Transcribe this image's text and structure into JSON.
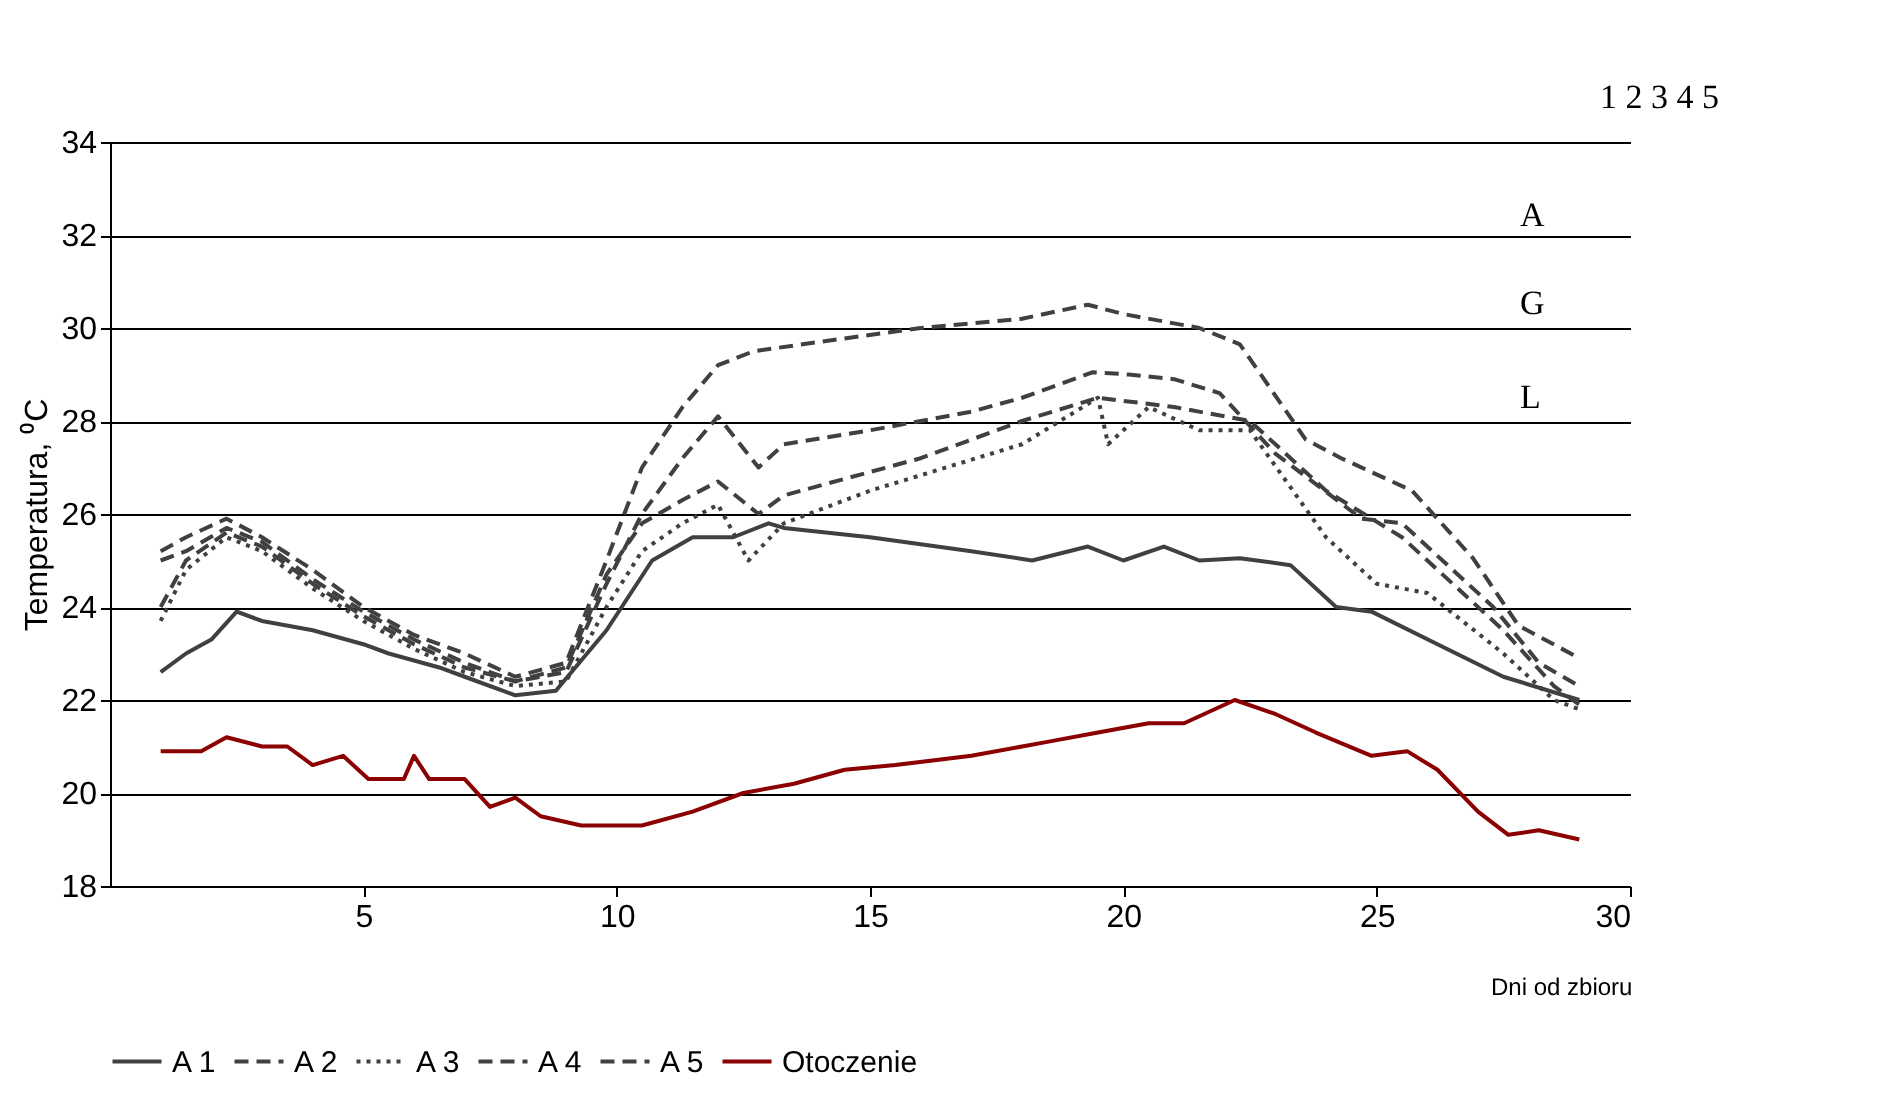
{
  "chart_data": {
    "type": "line",
    "xlabel": "Dni od zbioru",
    "ylabel": "Temperatura, ⁰C",
    "xlim": [
      0,
      30
    ],
    "xticks": [
      5,
      10,
      15,
      20,
      25,
      30
    ],
    "ylim": [
      18,
      34
    ],
    "yticks": [
      18,
      20,
      22,
      24,
      26,
      28,
      30,
      32,
      34
    ],
    "grid": "y",
    "legend": "bottom",
    "annotations": [
      "1 2 3 4 5",
      "A",
      "G",
      "L"
    ],
    "series": [
      {
        "name": "A 1",
        "color": "#404040",
        "line_style": "solid",
        "x": [
          1,
          1.5,
          2,
          2.5,
          3,
          4,
          5,
          5.5,
          6.5,
          7,
          8,
          8.8,
          9.8,
          10.7,
          11.5,
          12.3,
          13,
          13.3,
          15,
          17,
          18.2,
          19.3,
          20,
          20.8,
          21.5,
          22.3,
          23.3,
          24.2,
          24.9,
          26.2,
          27.5,
          29
        ],
        "values": [
          22.6,
          23.0,
          23.3,
          23.9,
          23.7,
          23.5,
          23.2,
          23.0,
          22.7,
          22.5,
          22.1,
          22.2,
          23.5,
          25.0,
          25.5,
          25.5,
          25.8,
          25.7,
          25.5,
          25.2,
          25.0,
          25.3,
          25.0,
          25.3,
          25.0,
          25.05,
          24.9,
          24.0,
          23.9,
          23.2,
          22.5,
          22.0
        ]
      },
      {
        "name": "A 2",
        "color": "#404040",
        "line_style": "dashed",
        "x": [
          1,
          1.5,
          2.3,
          3,
          4,
          5,
          6,
          7,
          8,
          9,
          9.8,
          10.5,
          11.3,
          12,
          12.8,
          13.3,
          15,
          17,
          18,
          19.4,
          20.1,
          21,
          21.9,
          23,
          24.7,
          25.5,
          26.3,
          27.3,
          28.2,
          29
        ],
        "values": [
          24.0,
          25.0,
          25.6,
          25.3,
          24.5,
          23.8,
          23.2,
          22.7,
          22.4,
          22.6,
          24.5,
          26.0,
          27.2,
          28.1,
          27.0,
          27.5,
          27.8,
          28.2,
          28.5,
          29.05,
          29.0,
          28.9,
          28.6,
          27.3,
          25.9,
          25.8,
          25.0,
          24.0,
          22.8,
          22.3
        ]
      },
      {
        "name": "A 3",
        "color": "#404040",
        "line_style": "dotted",
        "x": [
          1,
          1.5,
          2.3,
          3,
          4,
          5,
          6,
          7,
          8,
          9,
          9.8,
          10.5,
          11.3,
          12,
          12.6,
          13.3,
          15,
          18,
          19.5,
          19.7,
          20.5,
          21.5,
          22.5,
          24,
          25,
          26,
          27.5,
          28.5,
          29
        ],
        "values": [
          23.7,
          24.8,
          25.5,
          25.2,
          24.4,
          23.7,
          23.1,
          22.6,
          22.3,
          22.4,
          24.0,
          25.2,
          25.8,
          26.2,
          25.0,
          25.8,
          26.5,
          27.5,
          28.5,
          27.5,
          28.3,
          27.8,
          27.8,
          25.5,
          24.5,
          24.3,
          23.0,
          22.0,
          21.8
        ]
      },
      {
        "name": "A 4",
        "color": "#404040",
        "line_style": "dashed",
        "x": [
          1,
          1.5,
          2.3,
          3,
          4,
          5,
          6,
          7,
          8,
          9,
          9.8,
          10.5,
          11.3,
          12,
          12.7,
          14,
          16,
          18,
          19.3,
          20,
          21.5,
          22.3,
          23.6,
          24.3,
          25.7,
          26.9,
          27.8,
          29
        ],
        "values": [
          25.2,
          25.5,
          25.9,
          25.5,
          24.8,
          24.0,
          23.4,
          23.0,
          22.5,
          22.8,
          25.0,
          27.0,
          28.3,
          29.2,
          29.5,
          29.7,
          30.0,
          30.2,
          30.5,
          30.3,
          30.0,
          29.65,
          27.6,
          27.2,
          26.5,
          25.05,
          23.6,
          22.9
        ]
      },
      {
        "name": "A 5",
        "color": "#404040",
        "line_style": "dashed",
        "x": [
          1,
          1.5,
          2.3,
          3,
          4,
          5,
          6,
          7,
          8,
          9,
          9.8,
          10.5,
          11.3,
          12,
          12.8,
          13.3,
          16,
          18,
          19.5,
          21,
          22.5,
          24,
          25.5,
          26.5,
          27.5,
          28.5,
          29
        ],
        "values": [
          25.0,
          25.2,
          25.7,
          25.4,
          24.6,
          23.9,
          23.3,
          22.8,
          22.4,
          22.7,
          24.7,
          25.8,
          26.3,
          26.7,
          26.0,
          26.4,
          27.2,
          28.0,
          28.5,
          28.3,
          28.0,
          26.5,
          25.5,
          24.5,
          23.5,
          22.3,
          21.9
        ]
      },
      {
        "name": "Otoczenie",
        "color": "#8b0000",
        "line_style": "solid",
        "x": [
          1,
          1.8,
          2.3,
          3,
          3.5,
          4,
          4.6,
          5.1,
          5.8,
          6,
          6.3,
          7,
          7.5,
          8,
          8.5,
          9.3,
          10.5,
          11.5,
          12.5,
          13.5,
          14.5,
          15.5,
          17,
          18.5,
          19.5,
          20.5,
          21.2,
          22.2,
          23,
          23.8,
          24.9,
          25.6,
          26.2,
          27,
          27.6,
          28.2,
          29
        ],
        "values": [
          20.9,
          20.9,
          21.2,
          21.0,
          21.0,
          20.6,
          20.8,
          20.3,
          20.3,
          20.8,
          20.3,
          20.3,
          19.7,
          19.9,
          19.5,
          19.3,
          19.3,
          19.6,
          20.0,
          20.2,
          20.5,
          20.6,
          20.8,
          21.1,
          21.3,
          21.5,
          21.5,
          22.0,
          21.7,
          21.3,
          20.8,
          20.9,
          20.5,
          19.6,
          19.1,
          19.2,
          19.0
        ]
      }
    ]
  }
}
